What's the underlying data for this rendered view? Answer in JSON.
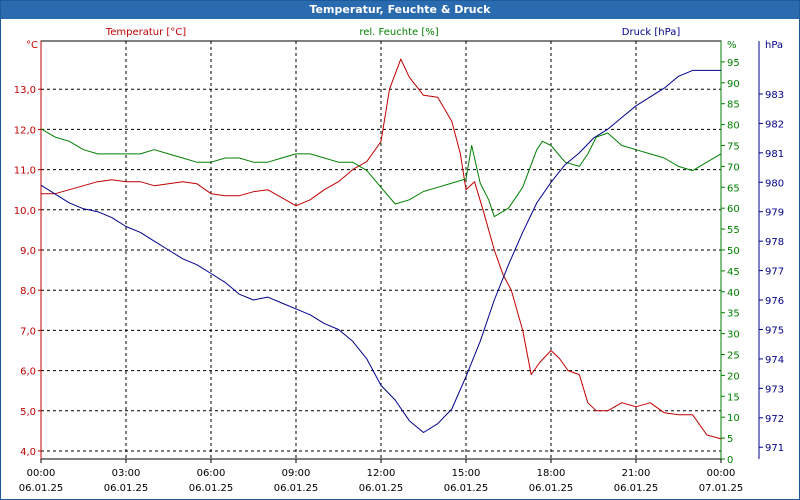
{
  "window": {
    "title": "Temperatur, Feuchte & Druck"
  },
  "colors": {
    "title_bar": "#2a6aae",
    "temperature": "#c00000",
    "humidity": "#008000",
    "pressure": "#00008b",
    "grid": "#000000"
  },
  "chart_data": {
    "type": "line",
    "title": "Temperatur, Feuchte & Druck",
    "grid": true,
    "x_ticks": [
      {
        "time": "00:00",
        "date": "06.01.25"
      },
      {
        "time": "03:00",
        "date": "06.01.25"
      },
      {
        "time": "06:00",
        "date": "06.01.25"
      },
      {
        "time": "09:00",
        "date": "06.01.25"
      },
      {
        "time": "12:00",
        "date": "06.01.25"
      },
      {
        "time": "15:00",
        "date": "06.01.25"
      },
      {
        "time": "18:00",
        "date": "06.01.25"
      },
      {
        "time": "21:00",
        "date": "06.01.25"
      },
      {
        "time": "00:00",
        "date": "07.01.25"
      }
    ],
    "x_range_hours": [
      0,
      24
    ],
    "axes": {
      "temperature": {
        "label": "Temperatur [°C]",
        "unit": "°C",
        "ylim": [
          3.8,
          14.2
        ],
        "ticks": [
          "4,0",
          "5,0",
          "6,0",
          "7,0",
          "8,0",
          "9,0",
          "10,0",
          "11,0",
          "12,0",
          "13,0"
        ]
      },
      "humidity": {
        "label": "rel. Feuchte [%]",
        "unit": "%",
        "ylim": [
          0,
          100
        ],
        "ticks": [
          "0",
          "5",
          "10",
          "15",
          "20",
          "25",
          "30",
          "35",
          "40",
          "45",
          "50",
          "55",
          "60",
          "65",
          "70",
          "75",
          "80",
          "85",
          "90",
          "95"
        ]
      },
      "pressure": {
        "label": "Druck [hPa]",
        "unit": "hPa",
        "ylim": [
          970.6,
          984.8
        ],
        "ticks": [
          "971",
          "972",
          "973",
          "974",
          "975",
          "976",
          "977",
          "978",
          "979",
          "980",
          "981",
          "982",
          "983"
        ]
      }
    },
    "series": [
      {
        "name": "Temperatur [°C]",
        "axis": "temperature",
        "points": [
          [
            0,
            10.4
          ],
          [
            0.5,
            10.4
          ],
          [
            1,
            10.5
          ],
          [
            1.5,
            10.6
          ],
          [
            2,
            10.7
          ],
          [
            2.5,
            10.75
          ],
          [
            3,
            10.7
          ],
          [
            3.5,
            10.7
          ],
          [
            4,
            10.6
          ],
          [
            4.5,
            10.65
          ],
          [
            5,
            10.7
          ],
          [
            5.5,
            10.65
          ],
          [
            6,
            10.4
          ],
          [
            6.5,
            10.35
          ],
          [
            7,
            10.35
          ],
          [
            7.5,
            10.45
          ],
          [
            8,
            10.5
          ],
          [
            8.5,
            10.3
          ],
          [
            9,
            10.1
          ],
          [
            9.5,
            10.25
          ],
          [
            10,
            10.5
          ],
          [
            10.5,
            10.7
          ],
          [
            11,
            11.0
          ],
          [
            11.5,
            11.2
          ],
          [
            12,
            11.7
          ],
          [
            12.3,
            13.0
          ],
          [
            12.7,
            13.75
          ],
          [
            13,
            13.3
          ],
          [
            13.5,
            12.85
          ],
          [
            14,
            12.8
          ],
          [
            14.5,
            12.2
          ],
          [
            14.8,
            11.4
          ],
          [
            15,
            10.5
          ],
          [
            15.3,
            10.7
          ],
          [
            15.6,
            10.0
          ],
          [
            16,
            9.0
          ],
          [
            16.3,
            8.4
          ],
          [
            16.6,
            8.0
          ],
          [
            17,
            7.0
          ],
          [
            17.3,
            5.9
          ],
          [
            17.6,
            6.2
          ],
          [
            18,
            6.5
          ],
          [
            18.3,
            6.3
          ],
          [
            18.6,
            6.0
          ],
          [
            19,
            5.9
          ],
          [
            19.3,
            5.2
          ],
          [
            19.6,
            5.0
          ],
          [
            20,
            5.0
          ],
          [
            20.5,
            5.2
          ],
          [
            21,
            5.1
          ],
          [
            21.5,
            5.2
          ],
          [
            22,
            4.95
          ],
          [
            22.5,
            4.9
          ],
          [
            23,
            4.9
          ],
          [
            23.5,
            4.4
          ],
          [
            24,
            4.3
          ]
        ]
      },
      {
        "name": "rel. Feuchte [%]",
        "axis": "humidity",
        "points": [
          [
            0,
            79
          ],
          [
            0.5,
            77
          ],
          [
            1,
            76
          ],
          [
            1.5,
            74
          ],
          [
            2,
            73
          ],
          [
            2.5,
            73
          ],
          [
            3,
            73
          ],
          [
            3.5,
            73
          ],
          [
            4,
            74
          ],
          [
            4.5,
            73
          ],
          [
            5,
            72
          ],
          [
            5.5,
            71
          ],
          [
            6,
            71
          ],
          [
            6.5,
            72
          ],
          [
            7,
            72
          ],
          [
            7.5,
            71
          ],
          [
            8,
            71
          ],
          [
            8.5,
            72
          ],
          [
            9,
            73
          ],
          [
            9.5,
            73
          ],
          [
            10,
            72
          ],
          [
            10.5,
            71
          ],
          [
            11,
            71
          ],
          [
            11.5,
            69
          ],
          [
            12,
            65
          ],
          [
            12.5,
            61
          ],
          [
            13,
            62
          ],
          [
            13.5,
            64
          ],
          [
            14,
            65
          ],
          [
            14.5,
            66
          ],
          [
            15,
            67
          ],
          [
            15.2,
            75
          ],
          [
            15.5,
            66
          ],
          [
            15.8,
            62
          ],
          [
            16,
            58
          ],
          [
            16.5,
            60
          ],
          [
            17,
            65
          ],
          [
            17.5,
            74
          ],
          [
            17.7,
            76
          ],
          [
            18,
            75
          ],
          [
            18.5,
            71
          ],
          [
            19,
            70
          ],
          [
            19.3,
            73
          ],
          [
            19.6,
            77
          ],
          [
            20,
            78
          ],
          [
            20.5,
            75
          ],
          [
            21,
            74
          ],
          [
            21.5,
            73
          ],
          [
            22,
            72
          ],
          [
            22.5,
            70
          ],
          [
            23,
            69
          ],
          [
            23.5,
            71
          ],
          [
            24,
            73
          ]
        ]
      },
      {
        "name": "Druck [hPa]",
        "axis": "pressure",
        "points": [
          [
            0,
            979.9
          ],
          [
            0.5,
            979.6
          ],
          [
            1,
            979.3
          ],
          [
            1.5,
            979.1
          ],
          [
            2,
            979.0
          ],
          [
            2.5,
            978.8
          ],
          [
            3,
            978.5
          ],
          [
            3.5,
            978.3
          ],
          [
            4,
            978.0
          ],
          [
            4.5,
            977.7
          ],
          [
            5,
            977.4
          ],
          [
            5.5,
            977.2
          ],
          [
            6,
            976.9
          ],
          [
            6.5,
            976.6
          ],
          [
            7,
            976.2
          ],
          [
            7.5,
            976.0
          ],
          [
            8,
            976.1
          ],
          [
            8.5,
            975.9
          ],
          [
            9,
            975.7
          ],
          [
            9.5,
            975.5
          ],
          [
            10,
            975.2
          ],
          [
            10.5,
            975.0
          ],
          [
            11,
            974.6
          ],
          [
            11.5,
            974.0
          ],
          [
            12,
            973.1
          ],
          [
            12.5,
            972.6
          ],
          [
            13,
            971.9
          ],
          [
            13.5,
            971.5
          ],
          [
            14,
            971.8
          ],
          [
            14.5,
            972.3
          ],
          [
            15,
            973.4
          ],
          [
            15.5,
            974.6
          ],
          [
            16,
            976.0
          ],
          [
            16.5,
            977.2
          ],
          [
            17,
            978.3
          ],
          [
            17.5,
            979.3
          ],
          [
            18,
            980.0
          ],
          [
            18.5,
            980.6
          ],
          [
            19,
            981.0
          ],
          [
            19.5,
            981.5
          ],
          [
            20,
            981.8
          ],
          [
            20.5,
            982.2
          ],
          [
            21,
            982.6
          ],
          [
            21.5,
            982.9
          ],
          [
            22,
            983.2
          ],
          [
            22.5,
            983.6
          ],
          [
            23,
            983.8
          ],
          [
            23.5,
            983.8
          ],
          [
            24,
            983.8
          ]
        ]
      }
    ]
  }
}
